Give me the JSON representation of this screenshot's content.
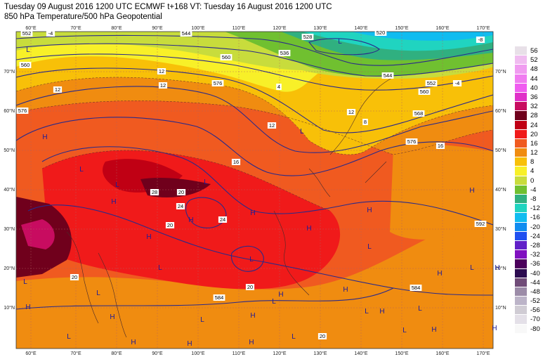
{
  "header": {
    "line1": "Tuesday 09 August 2016 1200 UTC  ECMWF  t+168  VT: Tuesday 16 August 2016 1200 UTC",
    "line2": "850 hPa Temperature/500 hPa Geopotential"
  },
  "map": {
    "lon_labels": [
      "60°E",
      "70°E",
      "80°E",
      "90°E",
      "100°E",
      "110°E",
      "120°E",
      "130°E",
      "140°E",
      "150°E",
      "160°E",
      "170°E"
    ],
    "lat_labels": [
      "70°N",
      "60°N",
      "50°N",
      "40°N",
      "30°N",
      "20°N",
      "10°N"
    ],
    "geopotential_labels": [
      "552",
      "520",
      "576",
      "560",
      "544",
      "536",
      "528",
      "592",
      "584",
      "568"
    ],
    "temperature_labels": [
      "-4",
      "-8",
      "4",
      "8",
      "12",
      "16",
      "20",
      "24",
      "28"
    ],
    "pressure_centres": [
      "H",
      "L"
    ]
  },
  "legend": {
    "values": [
      "56",
      "52",
      "48",
      "44",
      "40",
      "36",
      "32",
      "28",
      "24",
      "20",
      "16",
      "12",
      "8",
      "4",
      "0",
      "-4",
      "-8",
      "-12",
      "-16",
      "-20",
      "-24",
      "-28",
      "-32",
      "-36",
      "-40",
      "-44",
      "-48",
      "-52",
      "-56",
      "-70",
      "-80"
    ],
    "colors": [
      "#e8e0e8",
      "#f0bcf0",
      "#f09cf0",
      "#f07cf0",
      "#f05cf0",
      "#e030c8",
      "#c80c60",
      "#70001c",
      "#c00014",
      "#f01a1a",
      "#f05a20",
      "#f08c10",
      "#f8c008",
      "#f8f028",
      "#c8dc3c",
      "#70c030",
      "#30b080",
      "#20d4c0",
      "#10bcf0",
      "#108cf0",
      "#2050f0",
      "#6020c8",
      "#8010c0",
      "#4c005c",
      "#2c0c50",
      "#704c78",
      "#9c8ca8",
      "#bcb4c8",
      "#d0ccd4",
      "#e4e0e8",
      "#f8f8f8"
    ]
  }
}
